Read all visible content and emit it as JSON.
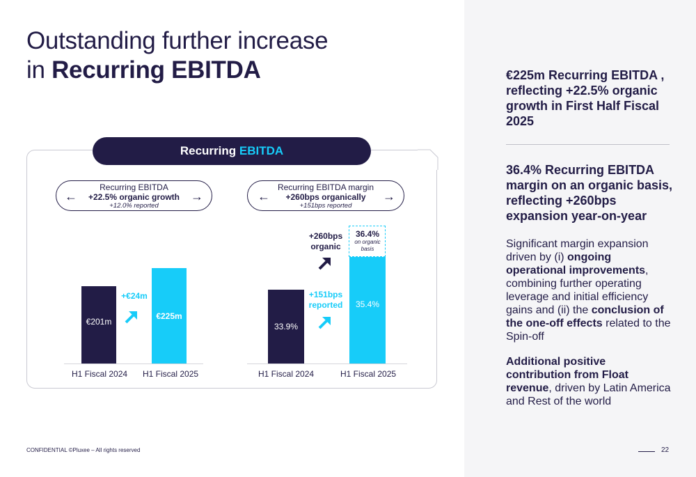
{
  "title": {
    "line1": "Outstanding further increase",
    "line2_prefix": "in ",
    "line2_bold": "Recurring EBITDA"
  },
  "pill": {
    "label": "Recurring ",
    "highlight": "EBITDA"
  },
  "left_box": {
    "line1": "Recurring EBITDA",
    "line2": "+22.5% organic growth",
    "line3": "+12.0% reported",
    "arrow_left": "←",
    "arrow_right": "→"
  },
  "right_box": {
    "line1": "Recurring EBITDA margin",
    "line2": "+260bps organically",
    "line3": "+151bps reported",
    "arrow_left": "←",
    "arrow_right": "→"
  },
  "left_chart": {
    "bar1_label": "€201m",
    "bar2_label": "€225m",
    "delta": "+€24m",
    "x1": "H1 Fiscal  2024",
    "x2": "H1 Fiscal 2025"
  },
  "right_chart": {
    "bar1_label": "33.9%",
    "bar2_label": "35.4%",
    "organic_value": "36.4%",
    "organic_note1": "on organic",
    "organic_note2": "basis",
    "organic_delta1": "+260bps",
    "organic_delta2": "organic",
    "reported_delta1": "+151bps",
    "reported_delta2": "reported",
    "x1": "H1 Fiscal  2024",
    "x2": "H1 Fiscal 2025"
  },
  "chart_data": [
    {
      "type": "bar",
      "categories": [
        "H1 Fiscal  2024",
        "H1 Fiscal 2025"
      ],
      "values": [
        201,
        225
      ],
      "value_labels": [
        "€201m",
        "€225m"
      ],
      "annotation": "+€24m"
    },
    {
      "type": "bar",
      "categories": [
        "H1 Fiscal  2024",
        "H1 Fiscal 2025"
      ],
      "values": [
        33.9,
        35.4
      ],
      "value_labels": [
        "33.9%",
        "35.4%"
      ],
      "organic_value": 36.4,
      "annotations": [
        "+260bps organic",
        "+151bps reported"
      ]
    }
  ],
  "right_panel": {
    "p1": "€225m Recurring EBITDA , reflecting +22.5% organic growth in First Half Fiscal 2025",
    "p2": "36.4% Recurring EBITDA margin on an organic basis, reflecting +260bps expansion year-on-year",
    "p3_a": "Significant margin expansion driven by (i) ",
    "p3_b": "ongoing operational improvements",
    "p3_c": ", combining further operating leverage and initial efficiency gains and (ii) the ",
    "p3_d": "conclusion of the one-off effects",
    "p3_e": " related to the Spin-off",
    "p4_a": "Additional positive contribution from Float revenue",
    "p4_b": ", driven by Latin America  and Rest of the world"
  },
  "footer": "CONFIDENTIAL ©Pluxee – All rights reserved",
  "page_number": "22",
  "colors": {
    "navy": "#221c46",
    "cyan": "#17ccf9",
    "panel": "#f5f5f7"
  }
}
